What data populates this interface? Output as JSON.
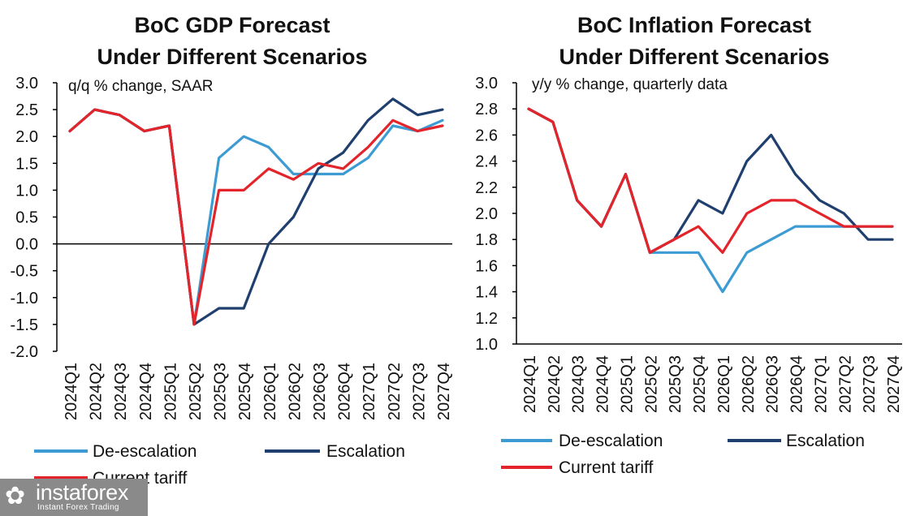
{
  "chart_data": [
    {
      "type": "line",
      "title": "BoC GDP Forecast",
      "subtitle": "Under Different Scenarios",
      "annotation": "q/q % change, SAAR",
      "ylim": [
        -2.0,
        3.0
      ],
      "yticks": [
        "3.0",
        "2.5",
        "2.0",
        "1.5",
        "1.0",
        "0.5",
        "0.0",
        "-0.5",
        "-1.0",
        "-1.5",
        "-2.0"
      ],
      "grid": false,
      "legend_position": "bottom",
      "categories": [
        "2024Q1",
        "2024Q2",
        "2024Q3",
        "2024Q4",
        "2025Q1",
        "2025Q2",
        "2025Q3",
        "2025Q4",
        "2026Q1",
        "2026Q2",
        "2026Q3",
        "2026Q4",
        "2027Q1",
        "2027Q2",
        "2027Q3",
        "2027Q4"
      ],
      "series": [
        {
          "name": "De-escalation",
          "color": "#3d9bd3",
          "values": [
            2.1,
            2.5,
            2.4,
            2.1,
            2.2,
            -1.5,
            1.6,
            2.0,
            1.8,
            1.3,
            1.3,
            1.3,
            1.6,
            2.2,
            2.1,
            2.3
          ]
        },
        {
          "name": "Escalation",
          "color": "#1f3f6e",
          "values": [
            2.1,
            2.5,
            2.4,
            2.1,
            2.2,
            -1.5,
            -1.2,
            -1.2,
            0.0,
            0.5,
            1.4,
            1.7,
            2.3,
            2.7,
            2.4,
            2.5
          ]
        },
        {
          "name": "Current tariff",
          "color": "#e3242b",
          "values": [
            2.1,
            2.5,
            2.4,
            2.1,
            2.2,
            -1.5,
            1.0,
            1.0,
            1.4,
            1.2,
            1.5,
            1.4,
            1.8,
            2.3,
            2.1,
            2.2
          ]
        }
      ]
    },
    {
      "type": "line",
      "title": "BoC Inflation Forecast",
      "subtitle": "Under Different Scenarios",
      "annotation": "y/y % change, quarterly data",
      "ylim": [
        1.0,
        3.0
      ],
      "yticks": [
        "3.0",
        "2.8",
        "2.6",
        "2.4",
        "2.2",
        "2.0",
        "1.8",
        "1.6",
        "1.4",
        "1.2",
        "1.0"
      ],
      "grid": false,
      "legend_position": "bottom",
      "categories": [
        "2024Q1",
        "2024Q2",
        "2024Q3",
        "2024Q4",
        "2025Q1",
        "2025Q2",
        "2025Q3",
        "2025Q4",
        "2026Q1",
        "2026Q2",
        "2026Q3",
        "2026Q4",
        "2027Q1",
        "2027Q2",
        "2027Q3",
        "2027Q4"
      ],
      "series": [
        {
          "name": "De-escalation",
          "color": "#3d9bd3",
          "values": [
            2.8,
            2.7,
            2.1,
            1.9,
            2.3,
            1.7,
            1.7,
            1.7,
            1.4,
            1.7,
            1.8,
            1.9,
            1.9,
            1.9,
            1.9,
            1.9
          ]
        },
        {
          "name": "Escalation",
          "color": "#1f3f6e",
          "values": [
            2.8,
            2.7,
            2.1,
            1.9,
            2.3,
            1.7,
            1.8,
            2.1,
            2.0,
            2.4,
            2.6,
            2.3,
            2.1,
            2.0,
            1.8,
            1.8
          ]
        },
        {
          "name": "Current tariff",
          "color": "#e3242b",
          "values": [
            2.8,
            2.7,
            2.1,
            1.9,
            2.3,
            1.7,
            1.8,
            1.9,
            1.7,
            2.0,
            2.1,
            2.1,
            2.0,
            1.9,
            1.9,
            1.9
          ]
        }
      ]
    }
  ],
  "watermark": {
    "name": "instaforex",
    "tagline": "Instant Forex Trading"
  }
}
